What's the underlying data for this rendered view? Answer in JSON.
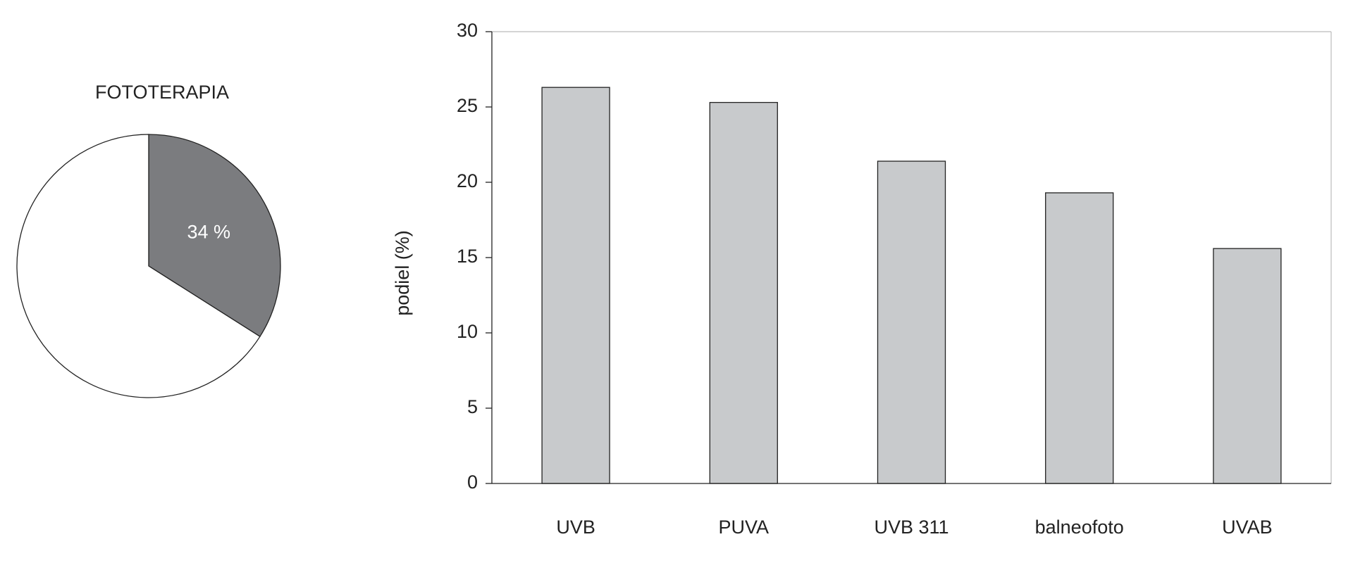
{
  "chart_data": [
    {
      "type": "pie",
      "title": "FOTOTERAPIA",
      "values": [
        34,
        66
      ],
      "value_labels": [
        "34 %",
        null
      ],
      "colors": [
        "#7b7c7f",
        "#ffffff"
      ]
    },
    {
      "type": "bar",
      "ylabel": "podiel (%)",
      "categories": [
        "UVB",
        "PUVA",
        "UVB 311",
        "balneofoto",
        "UVAB"
      ],
      "values": [
        26.3,
        25.3,
        21.4,
        19.3,
        15.6
      ],
      "color": "#c8cacc",
      "ylim": [
        0,
        30
      ],
      "yticks": [
        0,
        5,
        10,
        15,
        20,
        25,
        30
      ]
    }
  ]
}
